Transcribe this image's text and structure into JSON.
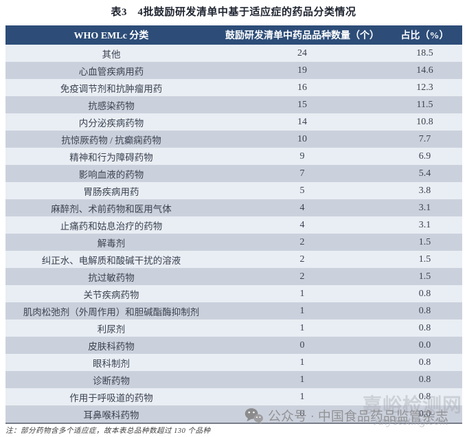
{
  "title": "表3　4批鼓励研发清单中基于适应症的药品分类情况",
  "table": {
    "columns": [
      "WHO EMLc 分类",
      "鼓励研发清单中药品品种数量（个）",
      "占比（%）"
    ],
    "rows": [
      {
        "category": "其他",
        "count": "24",
        "pct": "18.5"
      },
      {
        "category": "心血管疾病用药",
        "count": "19",
        "pct": "14.6"
      },
      {
        "category": "免疫调节剂和抗肿瘤用药",
        "count": "16",
        "pct": "12.3"
      },
      {
        "category": "抗感染药物",
        "count": "15",
        "pct": "11.5"
      },
      {
        "category": "内分泌疾病药物",
        "count": "14",
        "pct": "10.8"
      },
      {
        "category": "抗惊厥药物 / 抗癫痫药物",
        "count": "10",
        "pct": "7.7"
      },
      {
        "category": "精神和行为障碍药物",
        "count": "9",
        "pct": "6.9"
      },
      {
        "category": "影响血液的药物",
        "count": "7",
        "pct": "5.4"
      },
      {
        "category": "胃肠疾病用药",
        "count": "5",
        "pct": "3.8"
      },
      {
        "category": "麻醉剂、术前药物和医用气体",
        "count": "4",
        "pct": "3.1"
      },
      {
        "category": "止痛药和姑息治疗的药物",
        "count": "4",
        "pct": "3.1"
      },
      {
        "category": "解毒剂",
        "count": "2",
        "pct": "1.5"
      },
      {
        "category": "纠正水、电解质和酸碱干扰的溶液",
        "count": "2",
        "pct": "1.5"
      },
      {
        "category": "抗过敏药物",
        "count": "2",
        "pct": "1.5"
      },
      {
        "category": "关节疾病药物",
        "count": "1",
        "pct": "0.8"
      },
      {
        "category": "肌肉松弛剂（外周作用）和胆碱酯酶抑制剂",
        "count": "1",
        "pct": "0.8"
      },
      {
        "category": "利尿剂",
        "count": "1",
        "pct": "0.8"
      },
      {
        "category": "皮肤科药物",
        "count": "0",
        "pct": "0.0"
      },
      {
        "category": "眼科制剂",
        "count": "1",
        "pct": "0.8"
      },
      {
        "category": "诊断药物",
        "count": "1",
        "pct": "0.8"
      },
      {
        "category": "作用于呼吸道的药物",
        "count": "1",
        "pct": "0.8"
      },
      {
        "category": "耳鼻喉科药物",
        "count": "0",
        "pct": "0.0"
      }
    ]
  },
  "note": "注：部分药物含多个适应症，故本表总品种数超过 130 个品种",
  "watermarks": {
    "site_name": "嘉峪检测网",
    "site_url": "AnyTesting.com",
    "wechat_label": "公众号 · 中国食品药品监管杂志",
    "wechat_icon": "wechat-logo-icon"
  },
  "colors": {
    "header_bg": "#2d4d78",
    "row_light": "#e9eef4",
    "row_dark": "#cbd1dc",
    "row_text": "#3c4351"
  }
}
